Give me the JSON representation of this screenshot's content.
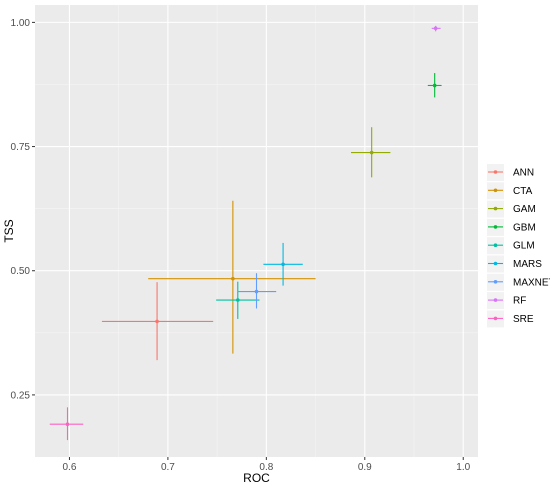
{
  "chart_data": {
    "type": "scatter",
    "title": "",
    "xlabel": "ROC",
    "ylabel": "TSS",
    "xlim": [
      0.565,
      1.015
    ],
    "ylim": [
      0.125,
      1.035
    ],
    "grid": true,
    "legend_position": "right",
    "x_ticks": [
      {
        "value": 0.6,
        "label": "0.6"
      },
      {
        "value": 0.7,
        "label": "0.7"
      },
      {
        "value": 0.8,
        "label": "0.8"
      },
      {
        "value": 0.9,
        "label": "0.9"
      },
      {
        "value": 1.0,
        "label": "1.0"
      }
    ],
    "y_ticks": [
      {
        "value": 0.25,
        "label": "0.25"
      },
      {
        "value": 0.5,
        "label": "0.50"
      },
      {
        "value": 0.75,
        "label": "0.75"
      },
      {
        "value": 1.0,
        "label": "1.00"
      }
    ],
    "series": [
      {
        "name": "ANN",
        "color": "#F8766D",
        "x": 0.689,
        "y": 0.398,
        "x_err": [
          0.633,
          0.746
        ],
        "y_err": [
          0.32,
          0.477
        ]
      },
      {
        "name": "CTA",
        "color": "#D39200",
        "x": 0.766,
        "y": 0.484,
        "x_err": [
          0.68,
          0.85
        ],
        "y_err": [
          0.333,
          0.641
        ]
      },
      {
        "name": "GAM",
        "color": "#93AA00",
        "x": 0.907,
        "y": 0.738,
        "x_err": [
          0.886,
          0.926
        ],
        "y_err": [
          0.688,
          0.789
        ]
      },
      {
        "name": "GBM",
        "color": "#00BA38",
        "x": 0.971,
        "y": 0.873,
        "x_err": [
          0.964,
          0.978
        ],
        "y_err": [
          0.849,
          0.898
        ]
      },
      {
        "name": "GLM",
        "color": "#00C19F",
        "x": 0.771,
        "y": 0.441,
        "x_err": [
          0.749,
          0.793
        ],
        "y_err": [
          0.403,
          0.478
        ]
      },
      {
        "name": "MARS",
        "color": "#00B9E3",
        "x": 0.817,
        "y": 0.513,
        "x_err": [
          0.797,
          0.837
        ],
        "y_err": [
          0.47,
          0.556
        ]
      },
      {
        "name": "MAXNET",
        "color": "#619CFF",
        "x": 0.79,
        "y": 0.458,
        "x_err": [
          0.771,
          0.81
        ],
        "y_err": [
          0.424,
          0.495
        ]
      },
      {
        "name": "RF",
        "color": "#DB72FB",
        "x": 0.972,
        "y": 0.988,
        "x_err": [
          0.968,
          0.977
        ],
        "y_err": [
          0.982,
          0.993
        ]
      },
      {
        "name": "SRE",
        "color": "#FF61C3",
        "x": 0.598,
        "y": 0.191,
        "x_err": [
          0.58,
          0.614
        ],
        "y_err": [
          0.159,
          0.225
        ]
      }
    ]
  },
  "colors": {
    "panel_background": "#EBEBEB",
    "grid_major": "#FFFFFF",
    "grid_minor": "#F5F5F5",
    "tick_label": "#4D4D4D",
    "axis_title": "#000000"
  }
}
